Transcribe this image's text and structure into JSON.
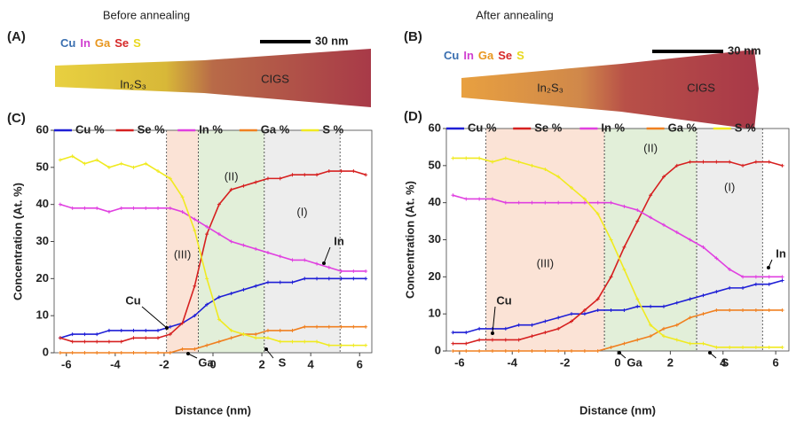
{
  "chart_data": [
    {
      "type": "line",
      "panel_label": "(C)",
      "title": "Before annealing",
      "image": {
        "panel_label": "(A)",
        "legend": [
          "Cu",
          "In",
          "Ga",
          "Se",
          "S"
        ],
        "legend_colors": [
          "#3a6fb0",
          "#d040d0",
          "#e8961e",
          "#d62828",
          "#e8d81e"
        ],
        "scale_bar": "30 nm",
        "labels": [
          "In₂S₃",
          "CIGS"
        ]
      },
      "x_label": "Distance (nm)",
      "y_label": "Concentration (At. %)",
      "xlim": [
        -6.5,
        6.5
      ],
      "ylim": [
        0,
        60
      ],
      "xticks": [
        -6,
        -4,
        -2,
        0,
        2,
        4,
        6
      ],
      "yticks": [
        0,
        10,
        20,
        30,
        40,
        50,
        60
      ],
      "x": [
        -6.25,
        -5.75,
        -5.25,
        -4.75,
        -4.25,
        -3.75,
        -3.25,
        -2.75,
        -2.25,
        -1.75,
        -1.25,
        -0.75,
        -0.25,
        0.25,
        0.75,
        1.25,
        1.75,
        2.25,
        2.75,
        3.25,
        3.75,
        4.25,
        4.75,
        5.25,
        5.75,
        6.25
      ],
      "series": [
        {
          "name": "Cu %",
          "color": "#1f1fd6",
          "values": [
            4,
            5,
            5,
            5,
            6,
            6,
            6,
            6,
            6,
            7,
            8,
            10,
            13,
            15,
            16,
            17,
            18,
            19,
            19,
            19,
            20,
            20,
            20,
            20,
            20,
            20
          ]
        },
        {
          "name": "Se %",
          "color": "#d62020",
          "values": [
            4,
            3,
            3,
            3,
            3,
            3,
            4,
            4,
            4,
            5,
            8,
            18,
            32,
            40,
            44,
            45,
            46,
            47,
            47,
            48,
            48,
            48,
            49,
            49,
            49,
            48
          ]
        },
        {
          "name": "In %",
          "color": "#e040e0",
          "values": [
            40,
            39,
            39,
            39,
            38,
            39,
            39,
            39,
            39,
            39,
            38,
            36,
            34,
            32,
            30,
            29,
            28,
            27,
            26,
            25,
            25,
            24,
            23,
            22,
            22,
            22
          ]
        },
        {
          "name": "Ga %",
          "color": "#f08020",
          "values": [
            0,
            0,
            0,
            0,
            0,
            0,
            0,
            0,
            0,
            0,
            1,
            1,
            2,
            3,
            4,
            5,
            5,
            6,
            6,
            6,
            7,
            7,
            7,
            7,
            7,
            7
          ]
        },
        {
          "name": "S %",
          "color": "#f0ea20",
          "values": [
            52,
            53,
            51,
            52,
            50,
            51,
            50,
            51,
            49,
            47,
            42,
            33,
            20,
            9,
            6,
            5,
            4,
            4,
            3,
            3,
            3,
            3,
            2,
            2,
            2,
            2
          ]
        }
      ],
      "regions": [
        {
          "label": "(III)",
          "start": -1.9,
          "end": -0.6,
          "color": "#fbe3d6"
        },
        {
          "label": "(II)",
          "start": -0.6,
          "end": 2.1,
          "color": "#e2efd9"
        },
        {
          "label": "(I)",
          "start": 2.1,
          "end": 5.2,
          "color": "#ededed"
        }
      ],
      "annotations": [
        "Cu",
        "In",
        "Ga",
        "S"
      ]
    },
    {
      "type": "line",
      "panel_label": "(D)",
      "title": "After annealing",
      "image": {
        "panel_label": "(B)",
        "legend": [
          "Cu",
          "In",
          "Ga",
          "Se",
          "S"
        ],
        "legend_colors": [
          "#3a6fb0",
          "#d040d0",
          "#e8961e",
          "#d62828",
          "#e8d81e"
        ],
        "scale_bar": "30 nm",
        "labels": [
          "In₂S₃",
          "CIGS"
        ]
      },
      "x_label": "Distance (nm)",
      "y_label": "Concentration (At. %)",
      "xlim": [
        -6.5,
        6.5
      ],
      "ylim": [
        0,
        60
      ],
      "xticks": [
        -6,
        -4,
        -2,
        0,
        2,
        4,
        6
      ],
      "yticks": [
        0,
        10,
        20,
        30,
        40,
        50,
        60
      ],
      "x": [
        -6.25,
        -5.75,
        -5.25,
        -4.75,
        -4.25,
        -3.75,
        -3.25,
        -2.75,
        -2.25,
        -1.75,
        -1.25,
        -0.75,
        -0.25,
        0.25,
        0.75,
        1.25,
        1.75,
        2.25,
        2.75,
        3.25,
        3.75,
        4.25,
        4.75,
        5.25,
        5.75,
        6.25
      ],
      "series": [
        {
          "name": "Cu %",
          "color": "#1f1fd6",
          "values": [
            5,
            5,
            6,
            6,
            6,
            7,
            7,
            8,
            9,
            10,
            10,
            11,
            11,
            11,
            12,
            12,
            12,
            13,
            14,
            15,
            16,
            17,
            17,
            18,
            18,
            19
          ]
        },
        {
          "name": "Se %",
          "color": "#d62020",
          "values": [
            2,
            2,
            3,
            3,
            3,
            3,
            4,
            5,
            6,
            8,
            11,
            14,
            20,
            28,
            35,
            42,
            47,
            50,
            51,
            51,
            51,
            51,
            50,
            51,
            51,
            50
          ]
        },
        {
          "name": "In %",
          "color": "#e040e0",
          "values": [
            42,
            41,
            41,
            41,
            40,
            40,
            40,
            40,
            40,
            40,
            40,
            40,
            40,
            39,
            38,
            36,
            34,
            32,
            30,
            28,
            25,
            22,
            20,
            20,
            20,
            20
          ]
        },
        {
          "name": "Ga %",
          "color": "#f08020",
          "values": [
            0,
            0,
            0,
            0,
            0,
            0,
            0,
            0,
            0,
            0,
            0,
            0,
            1,
            2,
            3,
            4,
            6,
            7,
            9,
            10,
            11,
            11,
            11,
            11,
            11,
            11
          ]
        },
        {
          "name": "S %",
          "color": "#f0ea20",
          "values": [
            52,
            52,
            52,
            51,
            52,
            51,
            50,
            49,
            47,
            44,
            41,
            37,
            30,
            22,
            14,
            7,
            4,
            3,
            2,
            2,
            1,
            1,
            1,
            1,
            1,
            1
          ]
        }
      ],
      "regions": [
        {
          "label": "(III)",
          "start": -5,
          "end": -0.5,
          "color": "#fbe3d6"
        },
        {
          "label": "(II)",
          "start": -0.5,
          "end": 3,
          "color": "#e2efd9"
        },
        {
          "label": "(I)",
          "start": 3,
          "end": 5.5,
          "color": "#ededed"
        }
      ],
      "annotations": [
        "Cu",
        "In",
        "Ga",
        "S"
      ]
    }
  ]
}
